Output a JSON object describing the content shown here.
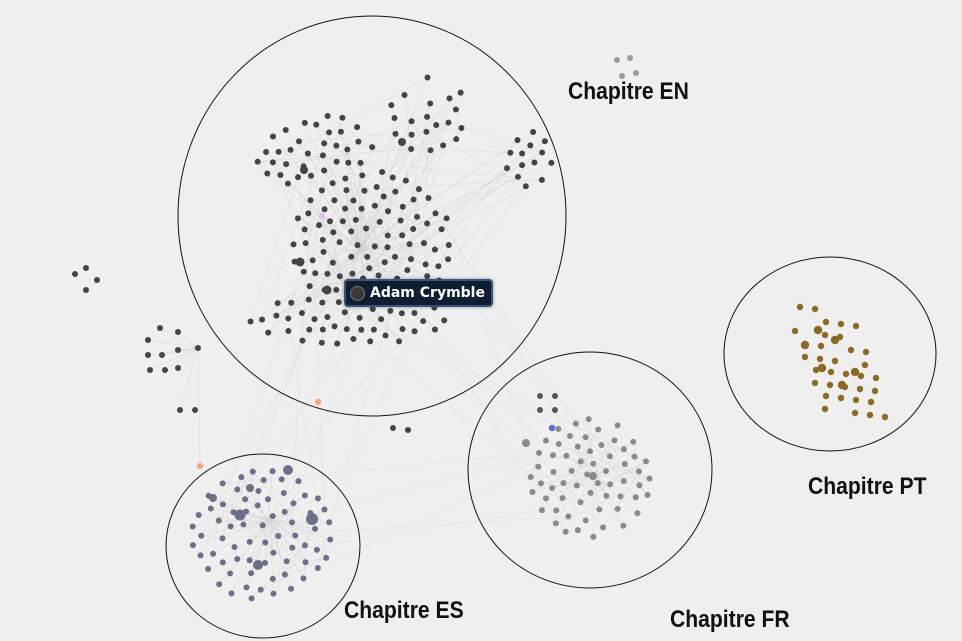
{
  "labels": {
    "en": "Chapitre EN",
    "es": "Chapitre ES",
    "fr": "Chapitre FR",
    "pt": "Chapitre PT"
  },
  "tooltip": {
    "name": "Adam Crymble"
  },
  "colors": {
    "background": "#efefef",
    "en_nodes": "#444444",
    "es_nodes": "#6b7089",
    "fr_nodes": "#8a8a8a",
    "pt_nodes": "#8a6a25",
    "edges": "#cfcfcf",
    "bridge_nodes": "#f0a985",
    "highlight_blue": "#5a6ad6",
    "highlight_lilac": "#d9c3f0"
  }
}
